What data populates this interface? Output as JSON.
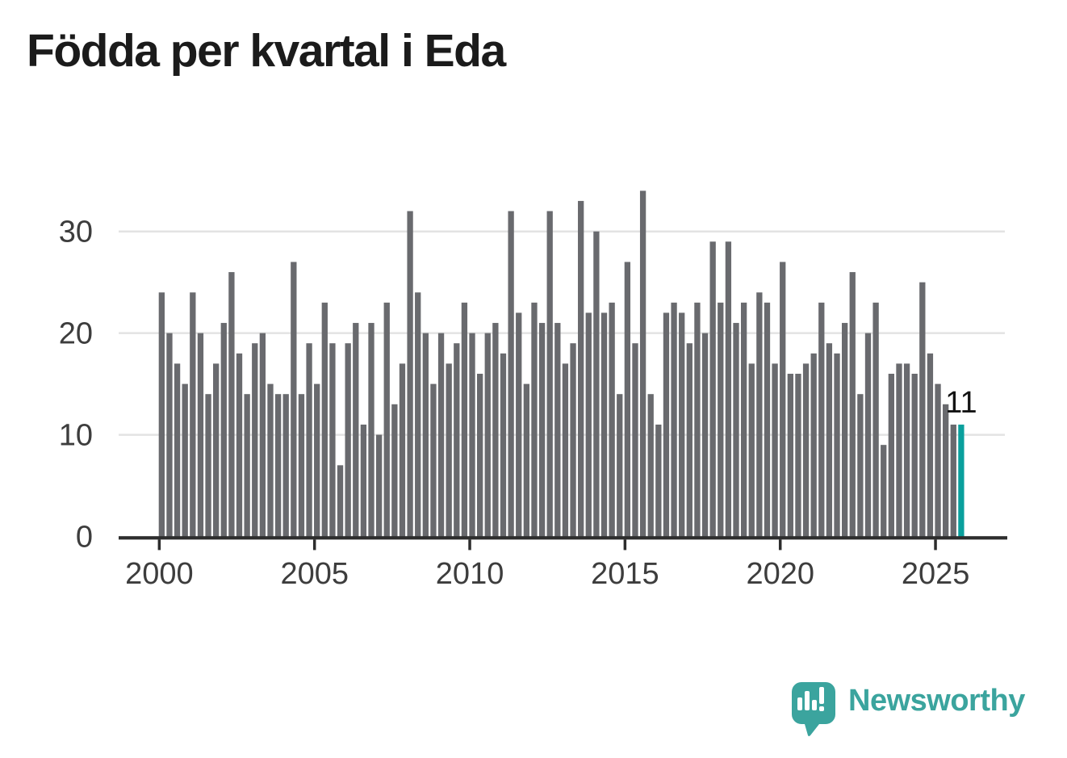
{
  "title": "Födda per kvartal i Eda",
  "annotation": {
    "text": "11"
  },
  "logo": {
    "text": "Newsworthy"
  },
  "colors": {
    "bar": "#696a6e",
    "accent": "#0aa09d",
    "grid": "#e3e3e3",
    "axis": "#2d2d2d",
    "tick_label": "#3d3d3d",
    "title": "#1b1b1b",
    "annotation": "#141414",
    "logo": "#3ba49e",
    "background": "#ffffff"
  },
  "chart_data": {
    "type": "bar",
    "title": "Födda per kvartal i Eda",
    "xlabel": "",
    "ylabel": "",
    "ylim": [
      0,
      35
    ],
    "y_ticks": [
      0,
      10,
      20,
      30
    ],
    "x_tick_labels": [
      "2000",
      "2005",
      "2010",
      "2015",
      "2020",
      "2025"
    ],
    "grid": "horizontal",
    "legend": "none",
    "highlight_last_bar": true,
    "highlight_label": "11",
    "categories": [
      "2000 Q1",
      "2000 Q2",
      "2000 Q3",
      "2000 Q4",
      "2001 Q1",
      "2001 Q2",
      "2001 Q3",
      "2001 Q4",
      "2002 Q1",
      "2002 Q2",
      "2002 Q3",
      "2002 Q4",
      "2003 Q1",
      "2003 Q2",
      "2003 Q3",
      "2003 Q4",
      "2004 Q1",
      "2004 Q2",
      "2004 Q3",
      "2004 Q4",
      "2005 Q1",
      "2005 Q2",
      "2005 Q3",
      "2005 Q4",
      "2006 Q1",
      "2006 Q2",
      "2006 Q3",
      "2006 Q4",
      "2007 Q1",
      "2007 Q2",
      "2007 Q3",
      "2007 Q4",
      "2008 Q1",
      "2008 Q2",
      "2008 Q3",
      "2008 Q4",
      "2009 Q1",
      "2009 Q2",
      "2009 Q3",
      "2009 Q4",
      "2010 Q1",
      "2010 Q2",
      "2010 Q3",
      "2010 Q4",
      "2011 Q1",
      "2011 Q2",
      "2011 Q3",
      "2011 Q4",
      "2012 Q1",
      "2012 Q2",
      "2012 Q3",
      "2012 Q4",
      "2013 Q1",
      "2013 Q2",
      "2013 Q3",
      "2013 Q4",
      "2014 Q1",
      "2014 Q2",
      "2014 Q3",
      "2014 Q4",
      "2015 Q1",
      "2015 Q2",
      "2015 Q3",
      "2015 Q4",
      "2016 Q1",
      "2016 Q2",
      "2016 Q3",
      "2016 Q4",
      "2017 Q1",
      "2017 Q2",
      "2017 Q3",
      "2017 Q4",
      "2018 Q1",
      "2018 Q2",
      "2018 Q3",
      "2018 Q4",
      "2019 Q1",
      "2019 Q2",
      "2019 Q3",
      "2019 Q4",
      "2020 Q1",
      "2020 Q2",
      "2020 Q3",
      "2020 Q4",
      "2021 Q1",
      "2021 Q2",
      "2021 Q3",
      "2021 Q4",
      "2022 Q1",
      "2022 Q2",
      "2022 Q3",
      "2022 Q4",
      "2023 Q1",
      "2023 Q2",
      "2023 Q3",
      "2023 Q4",
      "2024 Q1",
      "2024 Q2",
      "2024 Q3",
      "2024 Q4",
      "2025 Q1",
      "2025 Q2",
      "2025 Q3",
      "2025 Q4"
    ],
    "values": [
      24,
      20,
      17,
      15,
      24,
      20,
      14,
      17,
      21,
      26,
      18,
      14,
      19,
      20,
      15,
      14,
      14,
      27,
      14,
      19,
      15,
      23,
      19,
      7,
      19,
      21,
      11,
      21,
      10,
      23,
      13,
      17,
      32,
      24,
      20,
      15,
      20,
      17,
      19,
      23,
      20,
      16,
      20,
      21,
      18,
      32,
      22,
      15,
      23,
      21,
      32,
      21,
      17,
      19,
      33,
      22,
      30,
      22,
      23,
      14,
      27,
      19,
      34,
      14,
      11,
      22,
      23,
      22,
      19,
      23,
      20,
      29,
      23,
      29,
      21,
      23,
      17,
      24,
      23,
      17,
      27,
      16,
      16,
      17,
      18,
      23,
      19,
      18,
      21,
      26,
      14,
      20,
      23,
      9,
      16,
      17,
      17,
      16,
      25,
      18,
      15,
      13,
      11,
      11
    ]
  }
}
